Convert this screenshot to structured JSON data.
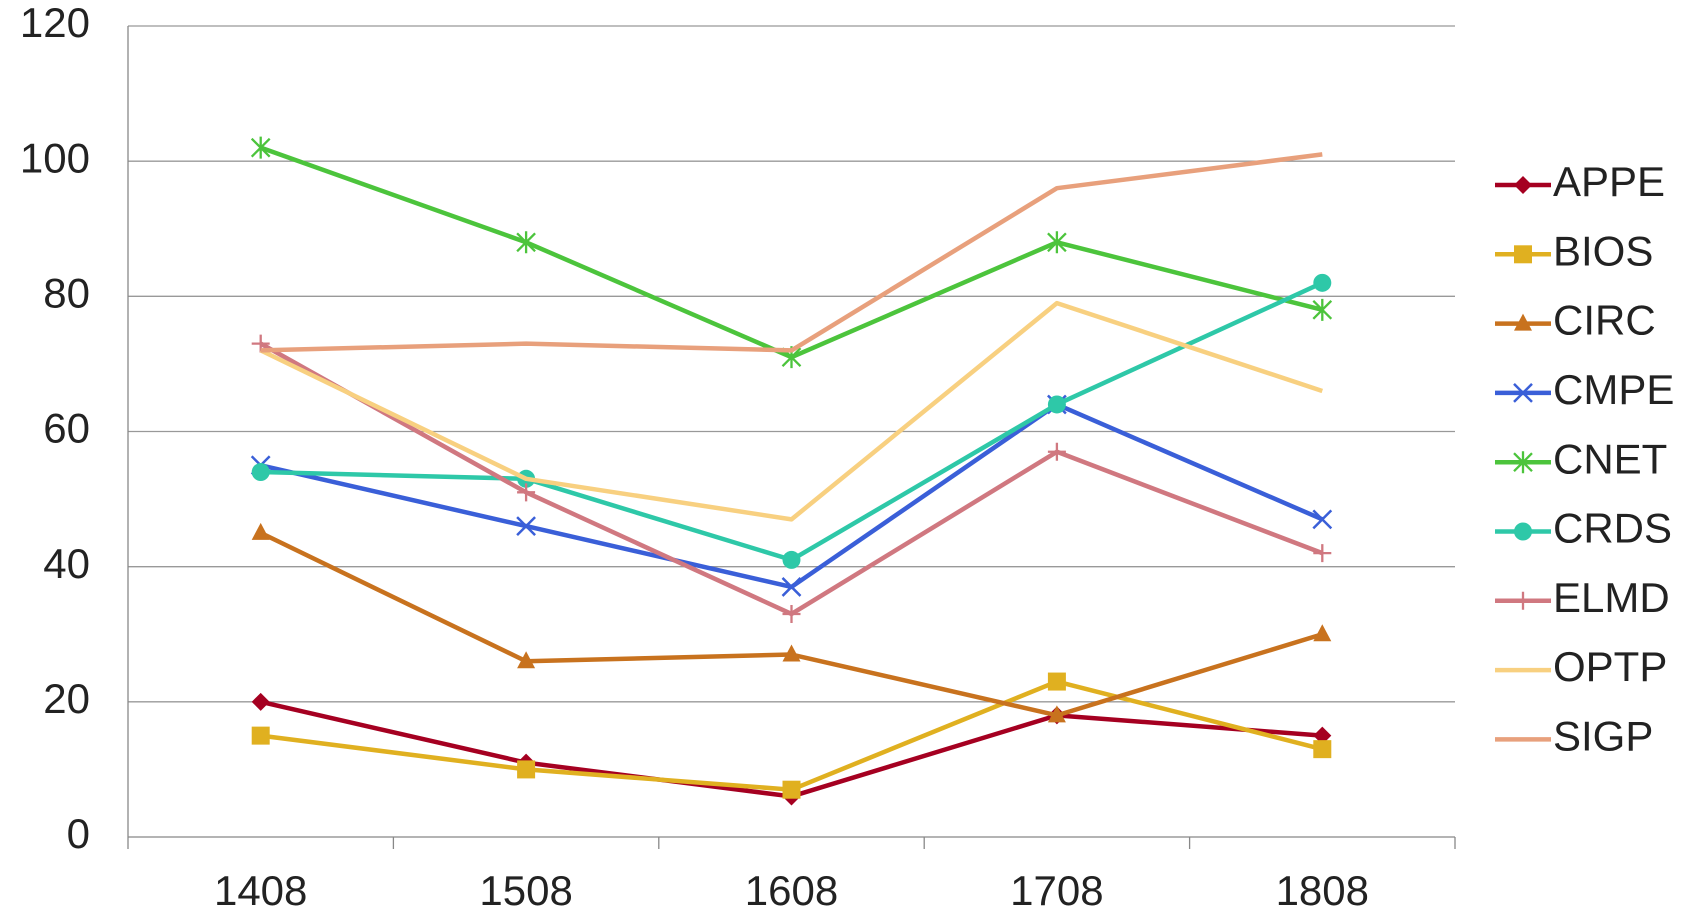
{
  "chart_data": {
    "type": "line",
    "categories": [
      "1408",
      "1508",
      "1608",
      "1708",
      "1808"
    ],
    "series": [
      {
        "name": "APPE",
        "color": "#a50021",
        "marker": "diamond",
        "values": [
          20,
          11,
          6,
          18,
          15
        ]
      },
      {
        "name": "BIOS",
        "color": "#e0b020",
        "marker": "square",
        "values": [
          15,
          10,
          7,
          23,
          13
        ]
      },
      {
        "name": "CIRC",
        "color": "#c8721e",
        "marker": "triangle",
        "values": [
          45,
          26,
          27,
          18,
          30
        ]
      },
      {
        "name": "CMPE",
        "color": "#3a5fd8",
        "marker": "x",
        "values": [
          55,
          46,
          37,
          64,
          47
        ]
      },
      {
        "name": "CNET",
        "color": "#4cc43c",
        "marker": "asterisk",
        "values": [
          102,
          88,
          71,
          88,
          78
        ]
      },
      {
        "name": "CRDS",
        "color": "#2ec8a8",
        "marker": "circle",
        "values": [
          54,
          53,
          41,
          64,
          82
        ]
      },
      {
        "name": "ELMD",
        "color": "#d07880",
        "marker": "plus",
        "values": [
          73,
          51,
          33,
          57,
          42
        ]
      },
      {
        "name": "OPTP",
        "color": "#f8d080",
        "marker": "none",
        "values": [
          72,
          53,
          47,
          79,
          66
        ]
      },
      {
        "name": "SIGP",
        "color": "#e8a07c",
        "marker": "none",
        "values": [
          72,
          73,
          72,
          96,
          101
        ]
      }
    ],
    "ylim": [
      0,
      120
    ],
    "yticks": [
      0,
      20,
      40,
      60,
      80,
      100,
      120
    ],
    "grid": true,
    "legend": "right"
  }
}
